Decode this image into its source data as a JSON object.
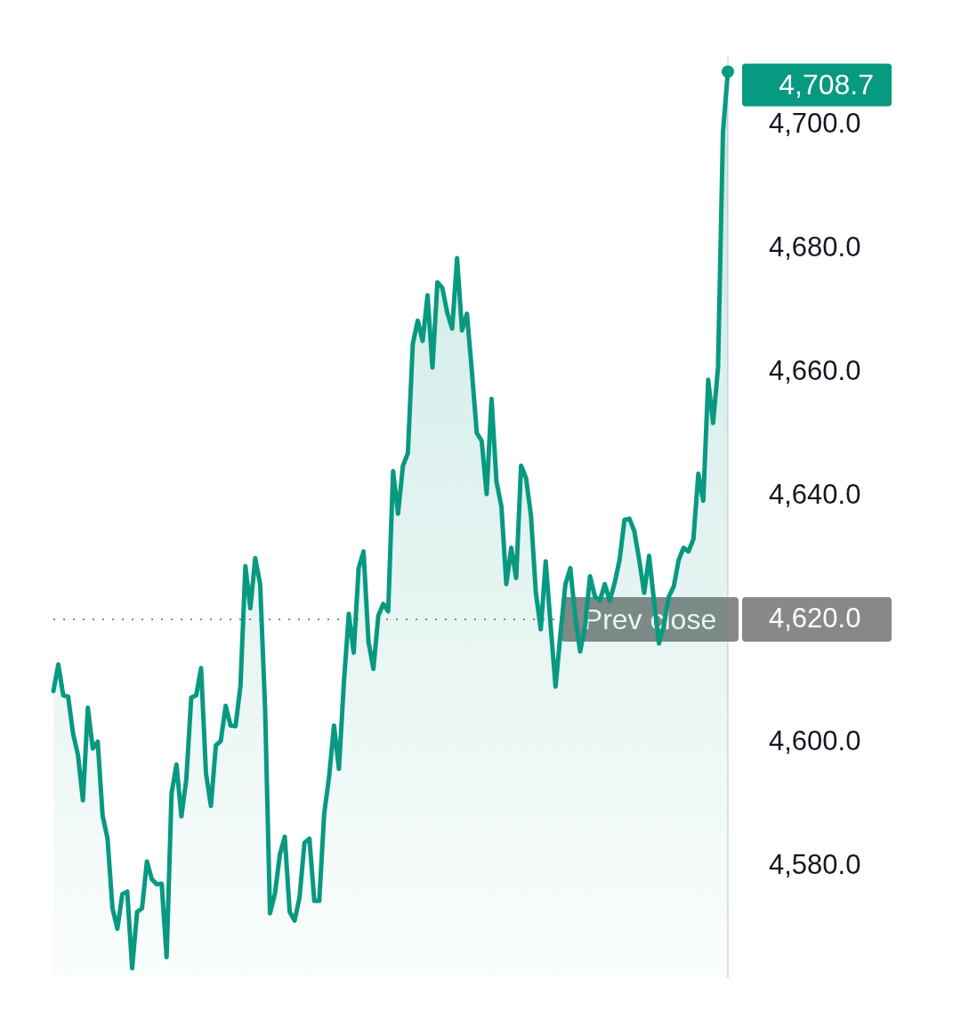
{
  "chart_data": {
    "type": "area",
    "categories": [
      null,
      null,
      null,
      null,
      null,
      null,
      null,
      null,
      null,
      null,
      null,
      null,
      null,
      null,
      null,
      null,
      null,
      null,
      null,
      null,
      null,
      null,
      null,
      null,
      null,
      null,
      null,
      null,
      null,
      null,
      null,
      null,
      null,
      null,
      null,
      null,
      null,
      null,
      null,
      null,
      null,
      null,
      null,
      null,
      null,
      null,
      null,
      null,
      null,
      null,
      null,
      null,
      null,
      null,
      null,
      null,
      null,
      null,
      null,
      null,
      null,
      null,
      null,
      null,
      null,
      null,
      null,
      null,
      null,
      null,
      null,
      null,
      null,
      null,
      null,
      null,
      null,
      null,
      null,
      null,
      null,
      null,
      null,
      null,
      null,
      null,
      null,
      null,
      null,
      null,
      null,
      null,
      null,
      null,
      null,
      null,
      null,
      null,
      null,
      null,
      null,
      null,
      null,
      null,
      null,
      null,
      null,
      null,
      null,
      null,
      null,
      null,
      null,
      null,
      null,
      null,
      null,
      null,
      null,
      null,
      null,
      null,
      null,
      null,
      null,
      null,
      null,
      null,
      null,
      null,
      null,
      null,
      null,
      null,
      null,
      null,
      null,
      null
    ],
    "series": [
      {
        "color": "#089981",
        "values": [
          4608.4,
          4612.7,
          4607.7,
          4607.5,
          4601.5,
          4598.0,
          4590.7,
          4605.7,
          4599.1,
          4600.2,
          4588.2,
          4584.5,
          4573.2,
          4569.9,
          4575.5,
          4575.9,
          4563.5,
          4572.6,
          4573.2,
          4580.8,
          4577.9,
          4577.1,
          4577.2,
          4565.3,
          4591.8,
          4596.5,
          4588.1,
          4594.1,
          4607.3,
          4607.7,
          4612.1,
          4595.0,
          4589.8,
          4599.6,
          4600.3,
          4606.0,
          4602.8,
          4602.7,
          4609.2,
          4628.6,
          4621.8,
          4629.9,
          4625.7,
          4605.7,
          4572.4,
          4575.6,
          4581.9,
          4584.8,
          4572.6,
          4571.2,
          4575.0,
          4583.8,
          4584.5,
          4574.4,
          4574.4,
          4588.5,
          4594.5,
          4602.8,
          4595.8,
          4609.7,
          4620.9,
          4614.6,
          4628.3,
          4631.0,
          4616.4,
          4612.0,
          4620.6,
          4622.5,
          4621.3,
          4644.0,
          4637.1,
          4644.9,
          4646.9,
          4664.6,
          4668.4,
          4665.1,
          4672.5,
          4660.8,
          4674.6,
          4673.7,
          4669.7,
          4667.1,
          4678.5,
          4666.8,
          4669.5,
          4660.2,
          4650.2,
          4648.9,
          4640.3,
          4655.7,
          4642.3,
          4638.3,
          4625.7,
          4631.6,
          4626.7,
          4644.9,
          4642.9,
          4636.9,
          4624.3,
          4618.4,
          4629.4,
          4619.0,
          4609.1,
          4617.7,
          4625.7,
          4628.3,
          4620.4,
          4614.8,
          4619.0,
          4627.0,
          4623.7,
          4623.0,
          4625.7,
          4623.0,
          4625.9,
          4629.6,
          4636.1,
          4636.3,
          4634.3,
          4629.6,
          4624.3,
          4630.3,
          4623.0,
          4616.1,
          4619.0,
          4623.7,
          4625.3,
          4629.6,
          4631.6,
          4631.0,
          4633.0,
          4643.6,
          4639.2,
          4658.8,
          4651.8,
          4660.8,
          4698.9,
          4708.7
        ],
        "value_labels": [
          null,
          null,
          null,
          null,
          null,
          null,
          null,
          null,
          null,
          null,
          null,
          null,
          null,
          null,
          null,
          null,
          null,
          null,
          null,
          null,
          null,
          null,
          null,
          null,
          null,
          null,
          null,
          null,
          null,
          null,
          null,
          null,
          null,
          null,
          null,
          null,
          null,
          null,
          null,
          null,
          null,
          null,
          null,
          null,
          null,
          null,
          null,
          null,
          null,
          null,
          null,
          null,
          null,
          null,
          null,
          null,
          null,
          null,
          null,
          null,
          null,
          null,
          null,
          null,
          null,
          null,
          null,
          null,
          null,
          null,
          null,
          null,
          null,
          null,
          null,
          null,
          null,
          null,
          null,
          null,
          null,
          null,
          null,
          null,
          null,
          null,
          null,
          null,
          null,
          null,
          null,
          null,
          null,
          null,
          null,
          null,
          null,
          null,
          null,
          null,
          null,
          null,
          null,
          null,
          null,
          null,
          null,
          null,
          null,
          null,
          null,
          null,
          null,
          null,
          null,
          null,
          null,
          null,
          null,
          null,
          null,
          null,
          null,
          null,
          null,
          null,
          null,
          null,
          null,
          null,
          null,
          null,
          null,
          null,
          null,
          null,
          null,
          "4,708.7"
        ]
      }
    ],
    "ylim": [
      4562,
      4711
    ],
    "yticks": [
      {
        "value": 4580,
        "label": "4,580.0"
      },
      {
        "value": 4600,
        "label": "4,600.0"
      },
      {
        "value": 4620,
        "label": "4,620.0"
      },
      {
        "value": 4640,
        "label": "4,640.0"
      },
      {
        "value": 4660,
        "label": "4,660.0"
      },
      {
        "value": 4680,
        "label": "4,680.0"
      },
      {
        "value": 4700,
        "label": "4,700.0"
      }
    ],
    "tick_labels": "y",
    "grid": false,
    "legend": false,
    "marker": "none",
    "line_style": "solid",
    "ref_lines": [
      {
        "axis": "y",
        "value": 4620,
        "label": "Prev close",
        "color": "#888888",
        "line_style": "dotted"
      }
    ]
  }
}
